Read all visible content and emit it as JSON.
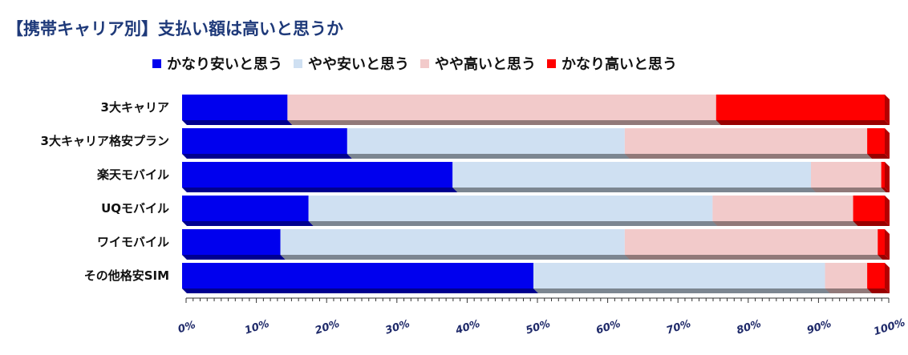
{
  "chart_data": {
    "type": "bar",
    "orientation": "horizontal",
    "stacked": true,
    "percent": true,
    "title": "【携帯キャリア別】支払い額は高いと思うか",
    "categories": [
      "3大キャリア",
      "3大キャリア格安プラン",
      "楽天モバイル",
      "UQモバイル",
      "ワイモバイル",
      "その他格安SIM"
    ],
    "series": [
      {
        "name": "かなり安いと思う",
        "color": "#0000ee",
        "values": [
          15,
          23.5,
          38.5,
          18,
          14,
          50
        ]
      },
      {
        "name": "やや安いと思う",
        "color": "#cfe0f2",
        "values": [
          0,
          39.5,
          51,
          57.5,
          49,
          41.5
        ]
      },
      {
        "name": "やや高いと思う",
        "color": "#f2caca",
        "values": [
          61,
          34.5,
          10,
          20,
          36,
          6
        ]
      },
      {
        "name": "かなり高いと思う",
        "color": "#ff0000",
        "values": [
          24,
          2.5,
          0.5,
          4.5,
          1,
          2.5
        ]
      }
    ],
    "xlim": [
      0,
      100
    ],
    "xticks": [
      "0%",
      "10%",
      "20%",
      "30%",
      "40%",
      "50%",
      "60%",
      "70%",
      "80%",
      "90%",
      "100%"
    ],
    "legend_position": "top",
    "grid": false
  }
}
